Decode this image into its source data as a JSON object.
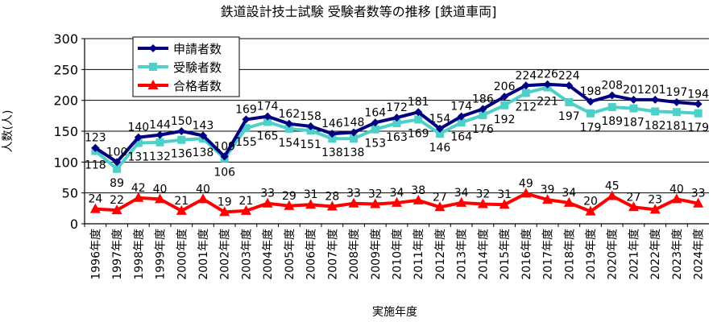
{
  "chart_data": {
    "type": "line",
    "title": "鉄道設計技士試験 受験者数等の推移 [鉄道車両]",
    "xlabel": "実施年度",
    "ylabel": "人数(人)",
    "ylim": [
      0,
      300
    ],
    "yticks": [
      0,
      50,
      100,
      150,
      200,
      250,
      300
    ],
    "grid": true,
    "legend_position": "top-left",
    "categories": [
      "1996年度",
      "1997年度",
      "1998年度",
      "1999年度",
      "2000年度",
      "2001年度",
      "2002年度",
      "2003年度",
      "2004年度",
      "2005年度",
      "2006年度",
      "2007年度",
      "2008年度",
      "2009年度",
      "2010年度",
      "2011年度",
      "2012年度",
      "2013年度",
      "2014年度",
      "2015年度",
      "2016年度",
      "2017年度",
      "2018年度",
      "2019年度",
      "2020年度",
      "2021年度",
      "2022年度",
      "2023年度",
      "2024年度"
    ],
    "series": [
      {
        "name": "申請者数",
        "color": "#000080",
        "marker": "diamond",
        "values": [
          123,
          100,
          140,
          144,
          150,
          143,
          109,
          169,
          174,
          162,
          158,
          146,
          148,
          164,
          172,
          181,
          154,
          174,
          186,
          206,
          224,
          226,
          224,
          198,
          208,
          201,
          201,
          197,
          194
        ]
      },
      {
        "name": "受験者数",
        "color": "#4dd0c8",
        "marker": "square",
        "values": [
          118,
          89,
          131,
          132,
          136,
          138,
          106,
          155,
          165,
          154,
          151,
          138,
          138,
          153,
          163,
          169,
          146,
          164,
          176,
          192,
          212,
          221,
          197,
          179,
          189,
          187,
          182,
          181,
          179
        ]
      },
      {
        "name": "合格者数",
        "color": "#ff0000",
        "marker": "triangle",
        "values": [
          24,
          22,
          42,
          40,
          21,
          40,
          19,
          21,
          33,
          29,
          31,
          28,
          33,
          32,
          34,
          38,
          27,
          34,
          32,
          31,
          49,
          39,
          34,
          20,
          45,
          27,
          23,
          40,
          33
        ]
      }
    ]
  }
}
